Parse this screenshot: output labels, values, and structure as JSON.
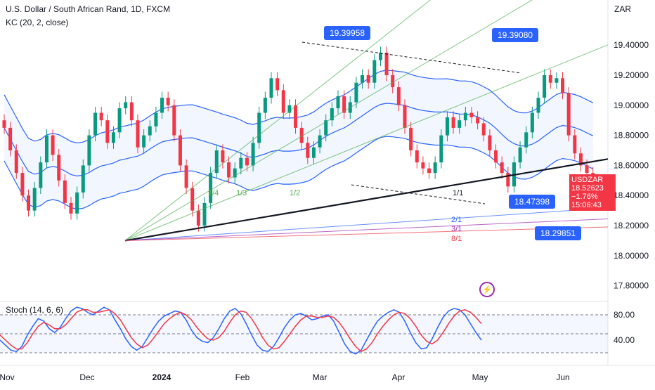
{
  "header": {
    "title": "U.S. Dollar / South African Rand, 1D, FXCM",
    "indicator": "KC (20, 2, close)",
    "currency": "ZAR"
  },
  "stoch": {
    "label": "Stoch (14, 6, 6)"
  },
  "last_price": {
    "symbol": "USDZAR",
    "price": "18.52623",
    "change": "−1.76%",
    "countdown": "15:06:43"
  },
  "price_labels": [
    "19.39958",
    "19.39080",
    "18.47398",
    "18.29851"
  ],
  "colors": {
    "up": "#089981",
    "down": "#f23645",
    "kc": "#2962ff",
    "stoch_k": "#2962ff",
    "stoch_d": "#f23645",
    "accent": "#2962ff"
  },
  "icons": {
    "flash": "flash-icon"
  },
  "chart_data": [
    {
      "type": "candlestick",
      "title": "U.S. Dollar / South African Rand, 1D, FXCM",
      "symbol": "USDZAR",
      "y_axis": {
        "min": 17.7,
        "max": 19.7,
        "ticks": [
          "17.80000",
          "18.00000",
          "18.20000",
          "18.40000",
          "18.60000",
          "18.80000",
          "19.00000",
          "19.20000",
          "19.40000"
        ]
      },
      "x_axis": {
        "labels": [
          "Nov",
          "Dec",
          "2024",
          "Feb",
          "Mar",
          "Apr",
          "May",
          "Jun"
        ]
      },
      "series_close": [
        18.85,
        18.7,
        18.55,
        18.4,
        18.3,
        18.45,
        18.62,
        18.8,
        18.67,
        18.5,
        18.35,
        18.28,
        18.42,
        18.6,
        18.8,
        18.95,
        18.9,
        18.75,
        18.82,
        18.98,
        19.02,
        18.9,
        18.72,
        18.8,
        18.86,
        18.95,
        19.05,
        19.0,
        18.8,
        18.6,
        18.45,
        18.3,
        18.2,
        18.35,
        18.55,
        18.7,
        18.62,
        18.52,
        18.58,
        18.65,
        18.6,
        18.75,
        18.95,
        19.05,
        19.18,
        19.1,
        18.95,
        19.0,
        18.85,
        18.75,
        18.65,
        18.72,
        18.8,
        18.9,
        18.98,
        19.06,
        18.95,
        19.02,
        19.15,
        19.2,
        19.15,
        19.3,
        19.35,
        19.2,
        19.12,
        19.0,
        18.85,
        18.7,
        18.62,
        18.58,
        18.55,
        18.62,
        18.8,
        18.92,
        18.85,
        18.9,
        18.95,
        18.92,
        18.88,
        18.8,
        18.7,
        18.62,
        18.55,
        18.46,
        18.62,
        18.72,
        18.82,
        18.95,
        19.05,
        19.2,
        19.15,
        19.18,
        19.08,
        18.8,
        18.68,
        18.6,
        18.55,
        18.53
      ],
      "annotations": {
        "fan_labels": [
          "1/4",
          "1/3",
          "1/2",
          "1/1",
          "2/1",
          "3/1",
          "8/1"
        ],
        "price_callouts": [
          "19.39958",
          "19.39080",
          "18.47398",
          "18.29851"
        ],
        "last_price_label": "USDZAR"
      },
      "keltner_channel": {
        "label": "KC (20, 2, close)"
      }
    },
    {
      "type": "line",
      "title": "Stoch (14, 6, 6)",
      "y_axis": {
        "min": 0,
        "max": 100,
        "ticks": [
          "40.00",
          "80.00"
        ],
        "guides": [
          80,
          50,
          20
        ]
      },
      "series": [
        {
          "values": [
            40,
            32,
            24,
            22,
            30,
            48,
            62,
            74,
            70,
            58,
            52,
            60,
            74,
            86,
            92,
            90,
            84,
            80,
            86,
            92,
            88,
            72,
            58,
            42,
            30,
            24,
            30,
            44,
            58,
            70,
            78,
            82,
            86,
            84,
            72,
            56,
            44,
            38,
            36,
            44,
            58,
            74,
            86,
            90,
            82,
            66,
            48,
            32,
            24,
            22,
            30,
            44,
            60,
            72,
            80,
            82,
            78,
            72,
            74,
            78,
            80,
            70,
            52,
            34,
            22,
            18,
            24,
            40,
            56,
            70,
            78,
            84,
            88,
            84,
            70,
            52,
            36,
            26,
            28,
            42,
            60,
            76,
            86,
            90,
            88,
            80,
            66,
            52,
            40
          ]
        },
        {
          "values": [
            48,
            40,
            32,
            26,
            26,
            36,
            50,
            62,
            68,
            64,
            58,
            58,
            64,
            74,
            84,
            88,
            88,
            84,
            84,
            86,
            88,
            82,
            72,
            58,
            44,
            34,
            28,
            32,
            42,
            54,
            66,
            74,
            80,
            84,
            80,
            72,
            60,
            50,
            42,
            40,
            44,
            54,
            68,
            80,
            86,
            84,
            74,
            60,
            44,
            32,
            26,
            28,
            38,
            50,
            62,
            72,
            78,
            78,
            76,
            76,
            78,
            76,
            68,
            56,
            42,
            30,
            22,
            26,
            36,
            50,
            62,
            72,
            80,
            84,
            82,
            74,
            62,
            48,
            38,
            34,
            40,
            52,
            66,
            78,
            86,
            88,
            84,
            76,
            66
          ]
        }
      ]
    }
  ]
}
